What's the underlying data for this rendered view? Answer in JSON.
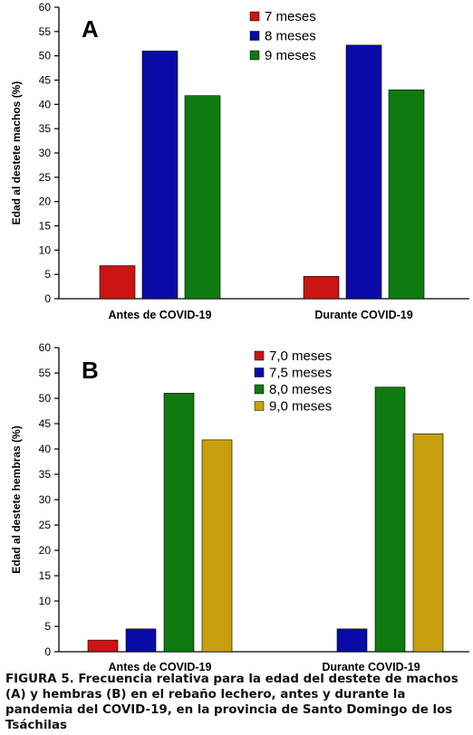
{
  "chart_data": [
    {
      "type": "bar",
      "panel_label": "A",
      "ylabel": "Edad al destete machos (%)",
      "ylim": [
        0,
        60
      ],
      "yticks": [
        0,
        5,
        10,
        15,
        20,
        25,
        30,
        35,
        40,
        45,
        50,
        55,
        60
      ],
      "categories": [
        "Antes de COVID-19",
        "Durante COVID-19"
      ],
      "legend_position": "top-right",
      "grid": false,
      "series": [
        {
          "name": "7 meses",
          "color": "#cc1414",
          "values": [
            6.8,
            4.6
          ]
        },
        {
          "name": "8 meses",
          "color": "#0a0aa8",
          "values": [
            51.0,
            52.2
          ]
        },
        {
          "name": "9 meses",
          "color": "#0f7a0f",
          "values": [
            41.8,
            43.0
          ]
        }
      ]
    },
    {
      "type": "bar",
      "panel_label": "B",
      "ylabel": "Edad al destete hembras (%)",
      "ylim": [
        0,
        60
      ],
      "yticks": [
        0,
        5,
        10,
        15,
        20,
        25,
        30,
        35,
        40,
        45,
        50,
        55,
        60
      ],
      "categories": [
        "Antes de COVID-19",
        "Durante COVID-19"
      ],
      "legend_position": "top-right",
      "grid": false,
      "series": [
        {
          "name": "7,0 meses",
          "color": "#cc1414",
          "values": [
            2.3,
            0
          ]
        },
        {
          "name": "7,5 meses",
          "color": "#0a0aa8",
          "values": [
            4.5,
            4.5
          ]
        },
        {
          "name": "8,0 meses",
          "color": "#0f7a0f",
          "values": [
            51.0,
            52.2
          ]
        },
        {
          "name": "9,0 meses",
          "color": "#c8a00f",
          "values": [
            41.8,
            43.0
          ]
        }
      ]
    }
  ],
  "caption": "FIGURA 5. Frecuencia relativa para la edad del destete de machos (A) y hembras (B) en el rebaño lechero, antes y durante la pandemia del COVID-19, en la provincia de Santo Domingo de los Tsáchilas"
}
